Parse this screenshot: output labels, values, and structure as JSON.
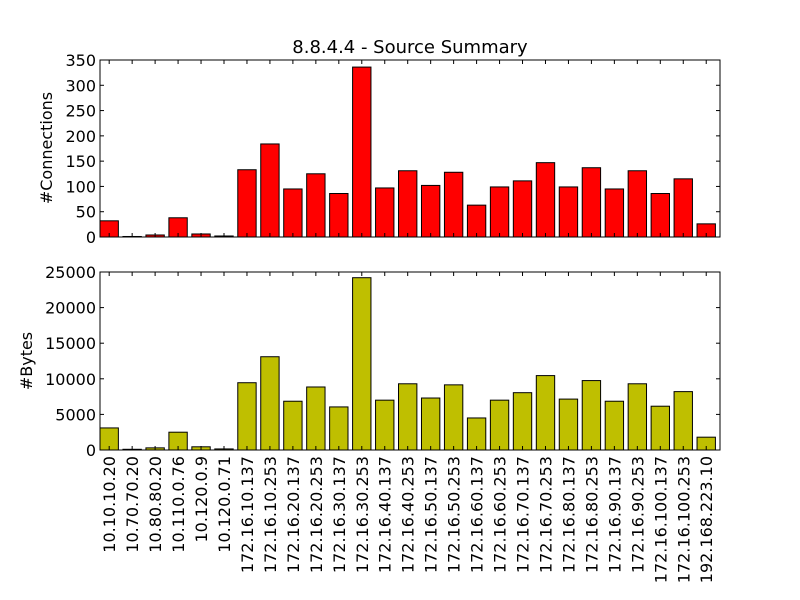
{
  "chart_data": {
    "type": "bar",
    "title": "8.8.4.4 - Source Summary",
    "categories": [
      "10.10.10.20",
      "10.70.70.20",
      "10.80.80.20",
      "10.110.0.76",
      "10.120.0.9",
      "10.120.0.71",
      "172.16.10.137",
      "172.16.10.253",
      "172.16.20.137",
      "172.16.20.253",
      "172.16.30.137",
      "172.16.30.253",
      "172.16.40.137",
      "172.16.40.253",
      "172.16.50.137",
      "172.16.50.253",
      "172.16.60.137",
      "172.16.60.253",
      "172.16.70.137",
      "172.16.70.253",
      "172.16.80.137",
      "172.16.80.253",
      "172.16.90.137",
      "172.16.90.253",
      "172.16.100.137",
      "172.16.100.253",
      "192.168.223.10"
    ],
    "panels": [
      {
        "ylabel": "#Connections",
        "ylim": [
          0,
          350
        ],
        "yticks": [
          "0",
          "50",
          "100",
          "150",
          "200",
          "250",
          "300",
          "350"
        ],
        "color": "#ff0000",
        "values": [
          32,
          1,
          4,
          38,
          6,
          2,
          133,
          184,
          95,
          125,
          86,
          336,
          97,
          131,
          102,
          128,
          63,
          99,
          111,
          147,
          99,
          137,
          95,
          131,
          86,
          115,
          26
        ]
      },
      {
        "ylabel": "#Bytes",
        "ylim": [
          0,
          25000
        ],
        "yticks": [
          "0",
          "5000",
          "10000",
          "15000",
          "20000",
          "25000"
        ],
        "color": "#bfbf00",
        "values": [
          3100,
          100,
          300,
          2500,
          450,
          150,
          9450,
          13100,
          6850,
          8850,
          6050,
          24200,
          7000,
          9300,
          7300,
          9150,
          4500,
          7000,
          8050,
          10450,
          7150,
          9750,
          6850,
          9300,
          6150,
          8200,
          1800
        ]
      }
    ]
  }
}
